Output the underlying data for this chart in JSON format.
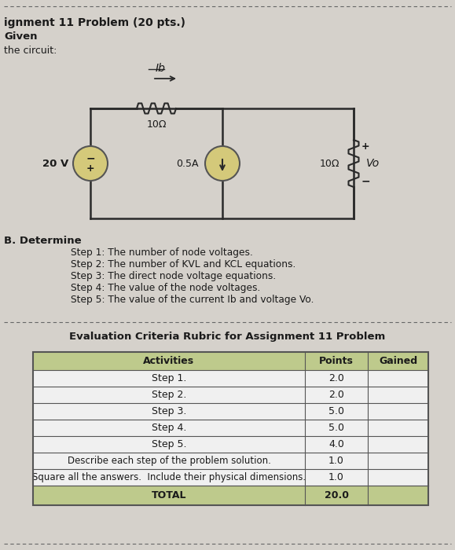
{
  "bg_color": "#d5d1cb",
  "title_line": "ignment 11 Problem (20 pts.)",
  "given_text": "Given",
  "circuit_text": "the circuit:",
  "section_b": "B. Determine",
  "steps": [
    "Step 1: The number of node voltages.",
    "Step 2: The number of KVL and KCL equations.",
    "Step 3: The direct node voltage equations.",
    "Step 4: The value of the node voltages.",
    "Step 5: The value of the current Ib and voltage Vo."
  ],
  "rubric_title": "Evaluation Criteria Rubric for Assignment 11 Problem",
  "table_headers": [
    "Activities",
    "Points",
    "Gained"
  ],
  "table_rows": [
    [
      "Step 1.",
      "2.0",
      ""
    ],
    [
      "Step 2.",
      "2.0",
      ""
    ],
    [
      "Step 3.",
      "5.0",
      ""
    ],
    [
      "Step 4.",
      "5.0",
      ""
    ],
    [
      "Step 5.",
      "4.0",
      ""
    ],
    [
      "Describe each step of the problem solution.",
      "1.0",
      ""
    ],
    [
      "Square all the answers.  Include their physical dimensions.",
      "1.0",
      ""
    ]
  ],
  "total_row": [
    "TOTAL",
    "20.0",
    ""
  ],
  "header_bg": "#beca8c",
  "total_bg": "#beca8c",
  "source_voltage": "20 V",
  "resistor1": "10Ω",
  "current_source": "0.5A",
  "resistor2": "10Ω",
  "ib_label": "Ib",
  "vo_label": "Vo",
  "circ_color": "#d4c97a",
  "wire_color": "#2a2a2a",
  "text_color": "#1a1a1a"
}
